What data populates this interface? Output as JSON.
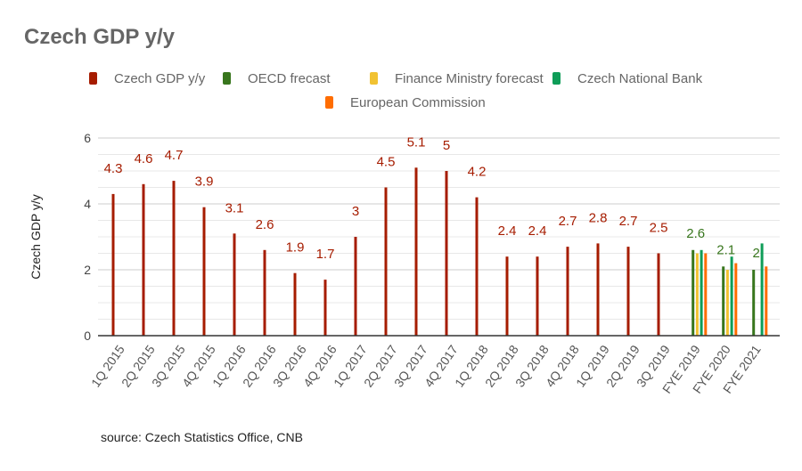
{
  "chart_data": {
    "type": "bar",
    "title": "Czech GDP y/y",
    "ylabel": "Czech GDP y/y",
    "xlabel": "",
    "ylim": [
      0,
      6
    ],
    "yticks": [
      "0",
      "2",
      "4",
      "6"
    ],
    "grid": true,
    "legend_position": "top",
    "categories": [
      "1Q 2015",
      "2Q 2015",
      "3Q 2015",
      "4Q 2015",
      "1Q 2016",
      "2Q 2016",
      "3Q 2016",
      "4Q 2016",
      "1Q 2017",
      "2Q 2017",
      "3Q 2017",
      "4Q 2017",
      "1Q 2018",
      "2Q 2018",
      "3Q 2018",
      "4Q 2018",
      "1Q 2019",
      "2Q 2019",
      "3Q 2019",
      "FYE 2019",
      "FYE 2020",
      "FYE 2021"
    ],
    "series": [
      {
        "name": "Czech GDP y/y",
        "color": "#a61c00",
        "label_color": "#a61c00",
        "show_labels": true,
        "values": [
          4.3,
          4.6,
          4.7,
          3.9,
          3.1,
          2.6,
          1.9,
          1.7,
          3,
          4.5,
          5.1,
          5,
          4.2,
          2.4,
          2.4,
          2.7,
          2.8,
          2.7,
          2.5,
          null,
          null,
          null
        ]
      },
      {
        "name": "OECD frecast",
        "color": "#38761d",
        "label_color": "#38761d",
        "show_labels": true,
        "values": [
          null,
          null,
          null,
          null,
          null,
          null,
          null,
          null,
          null,
          null,
          null,
          null,
          null,
          null,
          null,
          null,
          null,
          null,
          null,
          2.6,
          2.1,
          2
        ]
      },
      {
        "name": "Finance Ministry forecast",
        "color": "#f1c232",
        "show_labels": false,
        "values": [
          null,
          null,
          null,
          null,
          null,
          null,
          null,
          null,
          null,
          null,
          null,
          null,
          null,
          null,
          null,
          null,
          null,
          null,
          null,
          2.5,
          2.0,
          null
        ]
      },
      {
        "name": "Czech National Bank",
        "color": "#0f9d58",
        "show_labels": false,
        "values": [
          null,
          null,
          null,
          null,
          null,
          null,
          null,
          null,
          null,
          null,
          null,
          null,
          null,
          null,
          null,
          null,
          null,
          null,
          null,
          2.6,
          2.4,
          2.8
        ]
      },
      {
        "name": "European Commission",
        "color": "#ff6d01",
        "show_labels": false,
        "values": [
          null,
          null,
          null,
          null,
          null,
          null,
          null,
          null,
          null,
          null,
          null,
          null,
          null,
          null,
          null,
          null,
          null,
          null,
          null,
          2.5,
          2.2,
          2.1
        ]
      }
    ],
    "source": "source: Czech Statistics Office, CNB"
  }
}
